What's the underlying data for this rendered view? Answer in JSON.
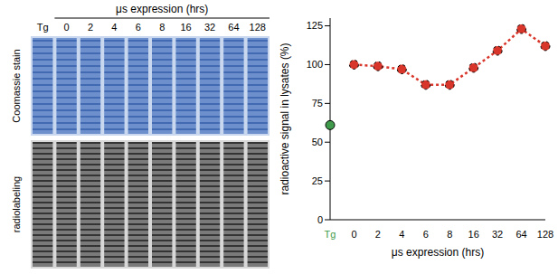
{
  "gel": {
    "header": "μs expression (hrs)",
    "lanes": [
      "Tg",
      "0",
      "2",
      "4",
      "6",
      "8",
      "16",
      "32",
      "64",
      "128"
    ],
    "panels": [
      "Coomassie stain",
      "radiolabeling"
    ]
  },
  "chart_data": {
    "type": "line",
    "y_label": "radioactive signal in lysates (%)",
    "x_label": "μs expression (hrs)",
    "categories": [
      "Tg",
      "0",
      "2",
      "4",
      "6",
      "8",
      "16",
      "32",
      "64",
      "128"
    ],
    "series": [
      {
        "color": "#3f9b4b",
        "marker": "circle",
        "line_style": "none",
        "values": [
          61,
          null,
          null,
          null,
          null,
          null,
          null,
          null,
          null,
          null
        ]
      },
      {
        "color": "#d8362a",
        "marker": "circle",
        "line_style": "dotted",
        "values": [
          null,
          100,
          99,
          97,
          87,
          87,
          98,
          109,
          123,
          112
        ]
      }
    ],
    "ylim": [
      0,
      130
    ],
    "yticks": [
      0,
      25,
      50,
      75,
      100,
      125
    ],
    "grid": false
  }
}
